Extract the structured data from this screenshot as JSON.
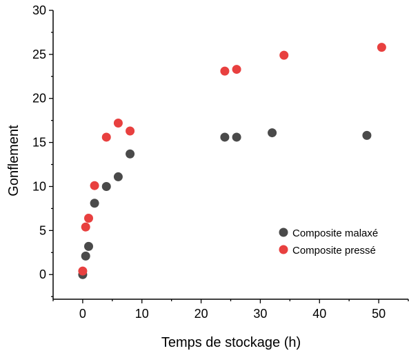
{
  "chart_data": {
    "type": "scatter",
    "xlabel": "Temps de stockage (h)",
    "ylabel": "Gonflement",
    "xlim": [
      -5,
      55
    ],
    "ylim": [
      -2.8,
      30
    ],
    "x_ticks": [
      0,
      10,
      20,
      30,
      40,
      50
    ],
    "y_ticks": [
      0,
      5,
      10,
      15,
      20,
      25,
      30
    ],
    "grid": false,
    "legend_position": "right",
    "series": [
      {
        "name": "Composite malaxé",
        "color": "#4a4a4a",
        "points": [
          [
            0,
            0.0
          ],
          [
            0.5,
            2.1
          ],
          [
            1,
            3.2
          ],
          [
            2,
            8.1
          ],
          [
            4,
            10.0
          ],
          [
            6,
            11.1
          ],
          [
            8,
            13.7
          ],
          [
            24,
            15.6
          ],
          [
            26,
            15.6
          ],
          [
            32,
            16.1
          ],
          [
            48,
            15.8
          ]
        ]
      },
      {
        "name": "Composite pressé",
        "color": "#e8403f",
        "points": [
          [
            0,
            0.4
          ],
          [
            0.5,
            5.4
          ],
          [
            1,
            6.4
          ],
          [
            2,
            10.1
          ],
          [
            4,
            15.6
          ],
          [
            6,
            17.2
          ],
          [
            8,
            16.3
          ],
          [
            24,
            23.1
          ],
          [
            26,
            23.3
          ],
          [
            34,
            24.9
          ],
          [
            50.5,
            25.8
          ]
        ]
      }
    ]
  }
}
